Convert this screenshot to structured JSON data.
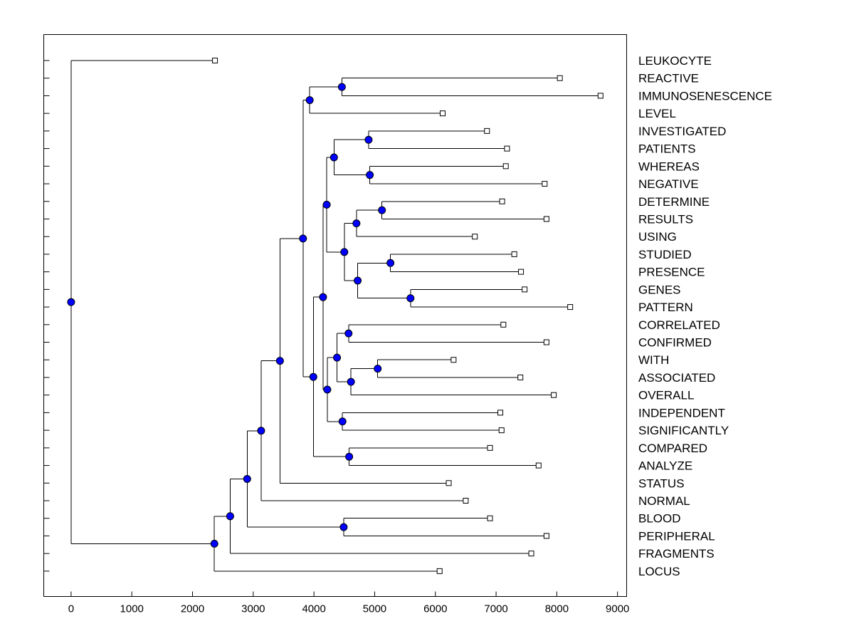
{
  "chart_data": {
    "type": "dendrogram",
    "orientation": "horizontal",
    "x_axis": {
      "range": [
        -450,
        9150
      ],
      "ticks": [
        0,
        1000,
        2000,
        3000,
        4000,
        5000,
        6000,
        7000,
        8000,
        9000
      ],
      "tick_labels": [
        "0",
        "1000",
        "2000",
        "3000",
        "4000",
        "5000",
        "6000",
        "7000",
        "8000",
        "9000"
      ]
    },
    "leaves": [
      {
        "label": "LEUKOCYTE",
        "value": 2370
      },
      {
        "label": "REACTIVE",
        "value": 8050
      },
      {
        "label": "IMMUNOSENESCENCE",
        "value": 8720
      },
      {
        "label": "LEVEL",
        "value": 6120
      },
      {
        "label": "INVESTIGATED",
        "value": 6850
      },
      {
        "label": "PATIENTS",
        "value": 7180
      },
      {
        "label": "WHEREAS",
        "value": 7160
      },
      {
        "label": "NEGATIVE",
        "value": 7800
      },
      {
        "label": "DETERMINE",
        "value": 7100
      },
      {
        "label": "RESULTS",
        "value": 7830
      },
      {
        "label": "USING",
        "value": 6650
      },
      {
        "label": "STUDIED",
        "value": 7300
      },
      {
        "label": "PRESENCE",
        "value": 7410
      },
      {
        "label": "GENES",
        "value": 7470
      },
      {
        "label": "PATTERN",
        "value": 8220
      },
      {
        "label": "CORRELATED",
        "value": 7120
      },
      {
        "label": "CONFIRMED",
        "value": 7830
      },
      {
        "label": "WITH",
        "value": 6300
      },
      {
        "label": "ASSOCIATED",
        "value": 7400
      },
      {
        "label": "OVERALL",
        "value": 7950
      },
      {
        "label": "INDEPENDENT",
        "value": 7070
      },
      {
        "label": "SIGNIFICANTLY",
        "value": 7090
      },
      {
        "label": "COMPARED",
        "value": 6900
      },
      {
        "label": "ANALYZE",
        "value": 7700
      },
      {
        "label": "STATUS",
        "value": 6220
      },
      {
        "label": "NORMAL",
        "value": 6500
      },
      {
        "label": "BLOOD",
        "value": 6900
      },
      {
        "label": "PERIPHERAL",
        "value": 7830
      },
      {
        "label": "FRAGMENTS",
        "value": 7580
      },
      {
        "label": "LOCUS",
        "value": 6070
      }
    ],
    "merges": [
      {
        "id": "n1",
        "value": 4460,
        "children": [
          "REACTIVE",
          "IMMUNOSENESCENCE"
        ]
      },
      {
        "id": "n2",
        "value": 3930,
        "children": [
          "n1",
          "LEVEL"
        ]
      },
      {
        "id": "n3",
        "value": 4900,
        "children": [
          "INVESTIGATED",
          "PATIENTS"
        ]
      },
      {
        "id": "n4",
        "value": 4920,
        "children": [
          "WHEREAS",
          "NEGATIVE"
        ]
      },
      {
        "id": "n5",
        "value": 4330,
        "children": [
          "n3",
          "n4"
        ]
      },
      {
        "id": "n6",
        "value": 5120,
        "children": [
          "DETERMINE",
          "RESULTS"
        ]
      },
      {
        "id": "n7",
        "value": 4700,
        "children": [
          "n6",
          "USING"
        ]
      },
      {
        "id": "n8",
        "value": 5260,
        "children": [
          "STUDIED",
          "PRESENCE"
        ]
      },
      {
        "id": "n9",
        "value": 5590,
        "children": [
          "GENES",
          "PATTERN"
        ]
      },
      {
        "id": "n10",
        "value": 4720,
        "children": [
          "n8",
          "n9"
        ]
      },
      {
        "id": "n11",
        "value": 4500,
        "children": [
          "n7",
          "n10"
        ]
      },
      {
        "id": "n12",
        "value": 4210,
        "children": [
          "n5",
          "n11"
        ]
      },
      {
        "id": "n13",
        "value": 4570,
        "children": [
          "CORRELATED",
          "CONFIRMED"
        ]
      },
      {
        "id": "n14",
        "value": 5050,
        "children": [
          "WITH",
          "ASSOCIATED"
        ]
      },
      {
        "id": "n15",
        "value": 4610,
        "children": [
          "n14",
          "OVERALL"
        ]
      },
      {
        "id": "n16",
        "value": 4380,
        "children": [
          "n13",
          "n15"
        ]
      },
      {
        "id": "n17",
        "value": 4470,
        "children": [
          "INDEPENDENT",
          "SIGNIFICANTLY"
        ]
      },
      {
        "id": "n18",
        "value": 4220,
        "children": [
          "n16",
          "n17"
        ]
      },
      {
        "id": "n19",
        "value": 4150,
        "children": [
          "n12",
          "n18"
        ]
      },
      {
        "id": "n20",
        "value": 4580,
        "children": [
          "COMPARED",
          "ANALYZE"
        ]
      },
      {
        "id": "n21",
        "value": 3990,
        "children": [
          "n19",
          "n20"
        ]
      },
      {
        "id": "n22",
        "value": 3820,
        "children": [
          "n2",
          "n21"
        ]
      },
      {
        "id": "n23",
        "value": 3440,
        "children": [
          "n22",
          "STATUS"
        ]
      },
      {
        "id": "n24",
        "value": 3130,
        "children": [
          "n23",
          "NORMAL"
        ]
      },
      {
        "id": "n25",
        "value": 4490,
        "children": [
          "BLOOD",
          "PERIPHERAL"
        ]
      },
      {
        "id": "n26",
        "value": 2900,
        "children": [
          "n24",
          "n25"
        ]
      },
      {
        "id": "n27",
        "value": 2620,
        "children": [
          "n26",
          "FRAGMENTS"
        ]
      },
      {
        "id": "n28",
        "value": 2360,
        "children": [
          "n27",
          "LOCUS"
        ]
      },
      {
        "id": "n29",
        "value": 0,
        "children": [
          "LEUKOCYTE",
          "n28"
        ]
      }
    ],
    "colors": {
      "node_fill": "#0000ff",
      "line": "#000000",
      "leaf_marker_fill": "#ffffff"
    }
  }
}
